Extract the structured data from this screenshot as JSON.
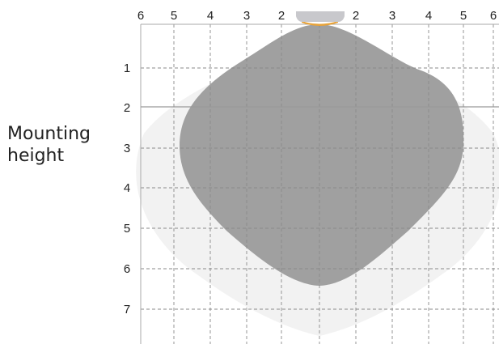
{
  "chart_data": {
    "type": "coverage-diagram",
    "x_ticks_left": [
      "6",
      "5",
      "4",
      "3",
      "2"
    ],
    "x_ticks_right": [
      "2",
      "3",
      "4",
      "5",
      "6"
    ],
    "y_ticks": [
      "1",
      "2",
      "3",
      "4",
      "5",
      "6",
      "7"
    ],
    "ylabel_line1": "Mounting",
    "ylabel_line2": "height",
    "x_range": [
      -6,
      6
    ],
    "y_range": [
      0,
      8
    ],
    "grid": true,
    "highlight_line_y": 2,
    "outer_zone_color": "#f2f2f2",
    "inner_zone_color": "#a0a0a0",
    "sensor_body_color": "#c8c8cc",
    "sensor_lens_color": "#e8a33a"
  }
}
